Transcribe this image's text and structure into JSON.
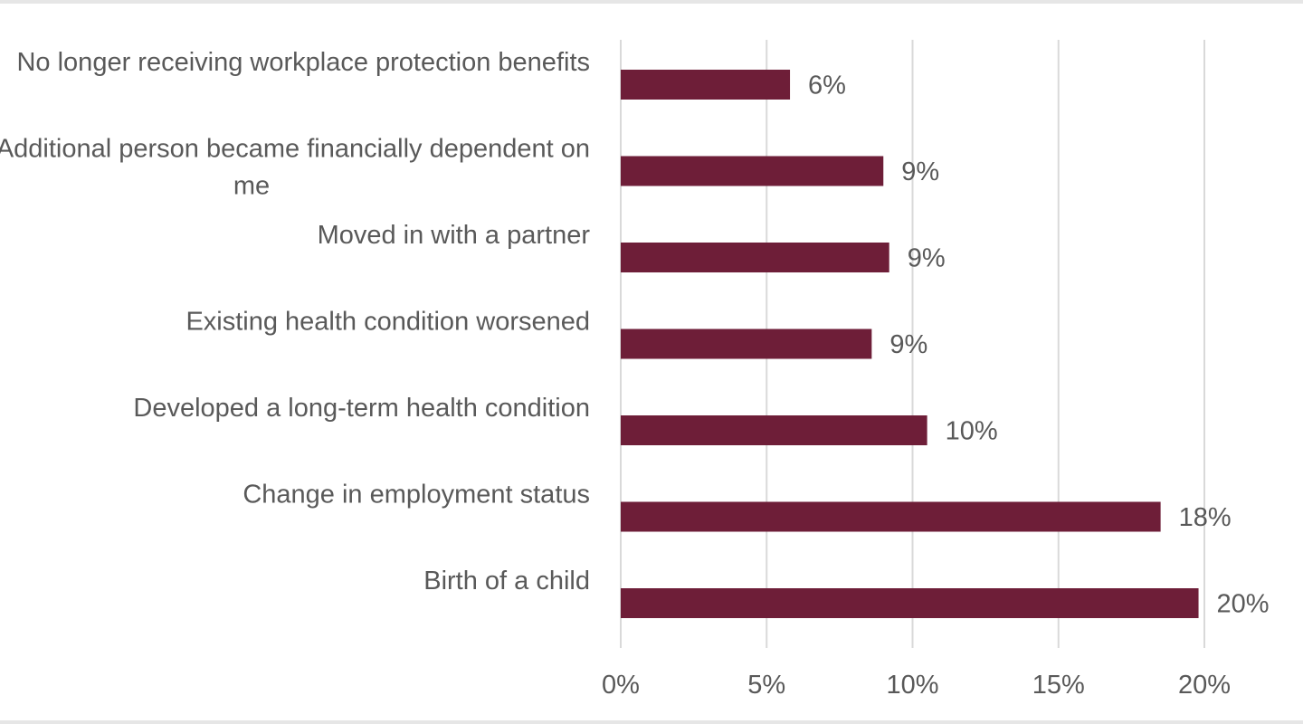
{
  "chart_data": {
    "type": "bar",
    "orientation": "horizontal",
    "categories": [
      "No longer receiving workplace protection benefits",
      "Additional person became financially dependent on me",
      "Moved in with a partner",
      "Existing health condition worsened",
      "Developed a long-term health condition",
      "Change in employment status",
      "Birth of a child"
    ],
    "category_lines": [
      [
        "No longer receiving workplace protection benefits"
      ],
      [
        "Additional person became financially dependent on",
        "me"
      ],
      [
        "Moved in with a partner"
      ],
      [
        "Existing health condition worsened"
      ],
      [
        "Developed a long-term health condition"
      ],
      [
        "Change in employment status"
      ],
      [
        "Birth of a child"
      ]
    ],
    "values": [
      5.8,
      9.0,
      9.2,
      8.6,
      10.5,
      18.5,
      19.8
    ],
    "data_labels": [
      "6%",
      "9%",
      "9%",
      "9%",
      "10%",
      "18%",
      "20%"
    ],
    "xlim": [
      0,
      20
    ],
    "xticks": [
      0,
      5,
      10,
      15,
      20
    ],
    "xtick_labels": [
      "0%",
      "5%",
      "10%",
      "15%",
      "20%"
    ],
    "grid": true,
    "bar_color": "#6e1e38",
    "grid_color": "#d9d9d9",
    "text_color": "#595959"
  }
}
